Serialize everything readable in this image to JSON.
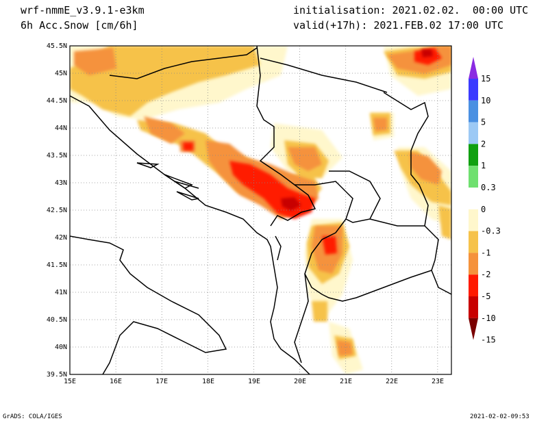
{
  "header": {
    "model": "wrf-nmmE_v3.9.1-e3km",
    "field": "6h Acc.Snow [cm/6h]",
    "init": "initialisation: 2021.02.02.  00:00 UTC",
    "valid": "valid(+17h): 2021.FEB.02 17:00 UTC"
  },
  "footer": {
    "credit": "GrADS: COLA/IGES",
    "timestamp": "2021-02-02-09:53"
  },
  "map": {
    "lon_ticks": [
      "15E",
      "16E",
      "17E",
      "18E",
      "19E",
      "20E",
      "21E",
      "22E",
      "23E"
    ],
    "lat_ticks": [
      "45.5N",
      "45N",
      "44.5N",
      "44N",
      "43.5N",
      "43N",
      "42.5N",
      "42N",
      "41.5N",
      "41N",
      "40.5N",
      "40N",
      "39.5N"
    ],
    "lon_range": [
      15,
      23.3
    ],
    "lat_range": [
      39.5,
      45.5
    ],
    "snow_areas": [
      {
        "name": "north-croatia-band",
        "level": "-1"
      },
      {
        "name": "bosnia-band",
        "level": "-2"
      },
      {
        "name": "montenegro-core",
        "level": "-5"
      },
      {
        "name": "albania-kosovo-core",
        "level": "-10"
      },
      {
        "name": "north-macedonia",
        "level": "-5"
      },
      {
        "name": "south-albania",
        "level": "-2"
      },
      {
        "name": "romania-northeast",
        "level": "-5"
      },
      {
        "name": "bulgaria-east",
        "level": "-2"
      }
    ]
  },
  "colorbar": {
    "labels": [
      "15",
      "10",
      "5",
      "2",
      "1",
      "0.3",
      "0",
      "-0.3",
      "-1",
      "-2",
      "-5",
      "-10",
      "-15"
    ],
    "colors": [
      "#8a2be2",
      "#3b3bff",
      "#4a90e2",
      "#9cc9f5",
      "#10a010",
      "#6fe06f",
      "#ffffff",
      "#fff7cc",
      "#f6c24a",
      "#f5923c",
      "#ff1a00",
      "#c80000",
      "#7a0000"
    ]
  }
}
